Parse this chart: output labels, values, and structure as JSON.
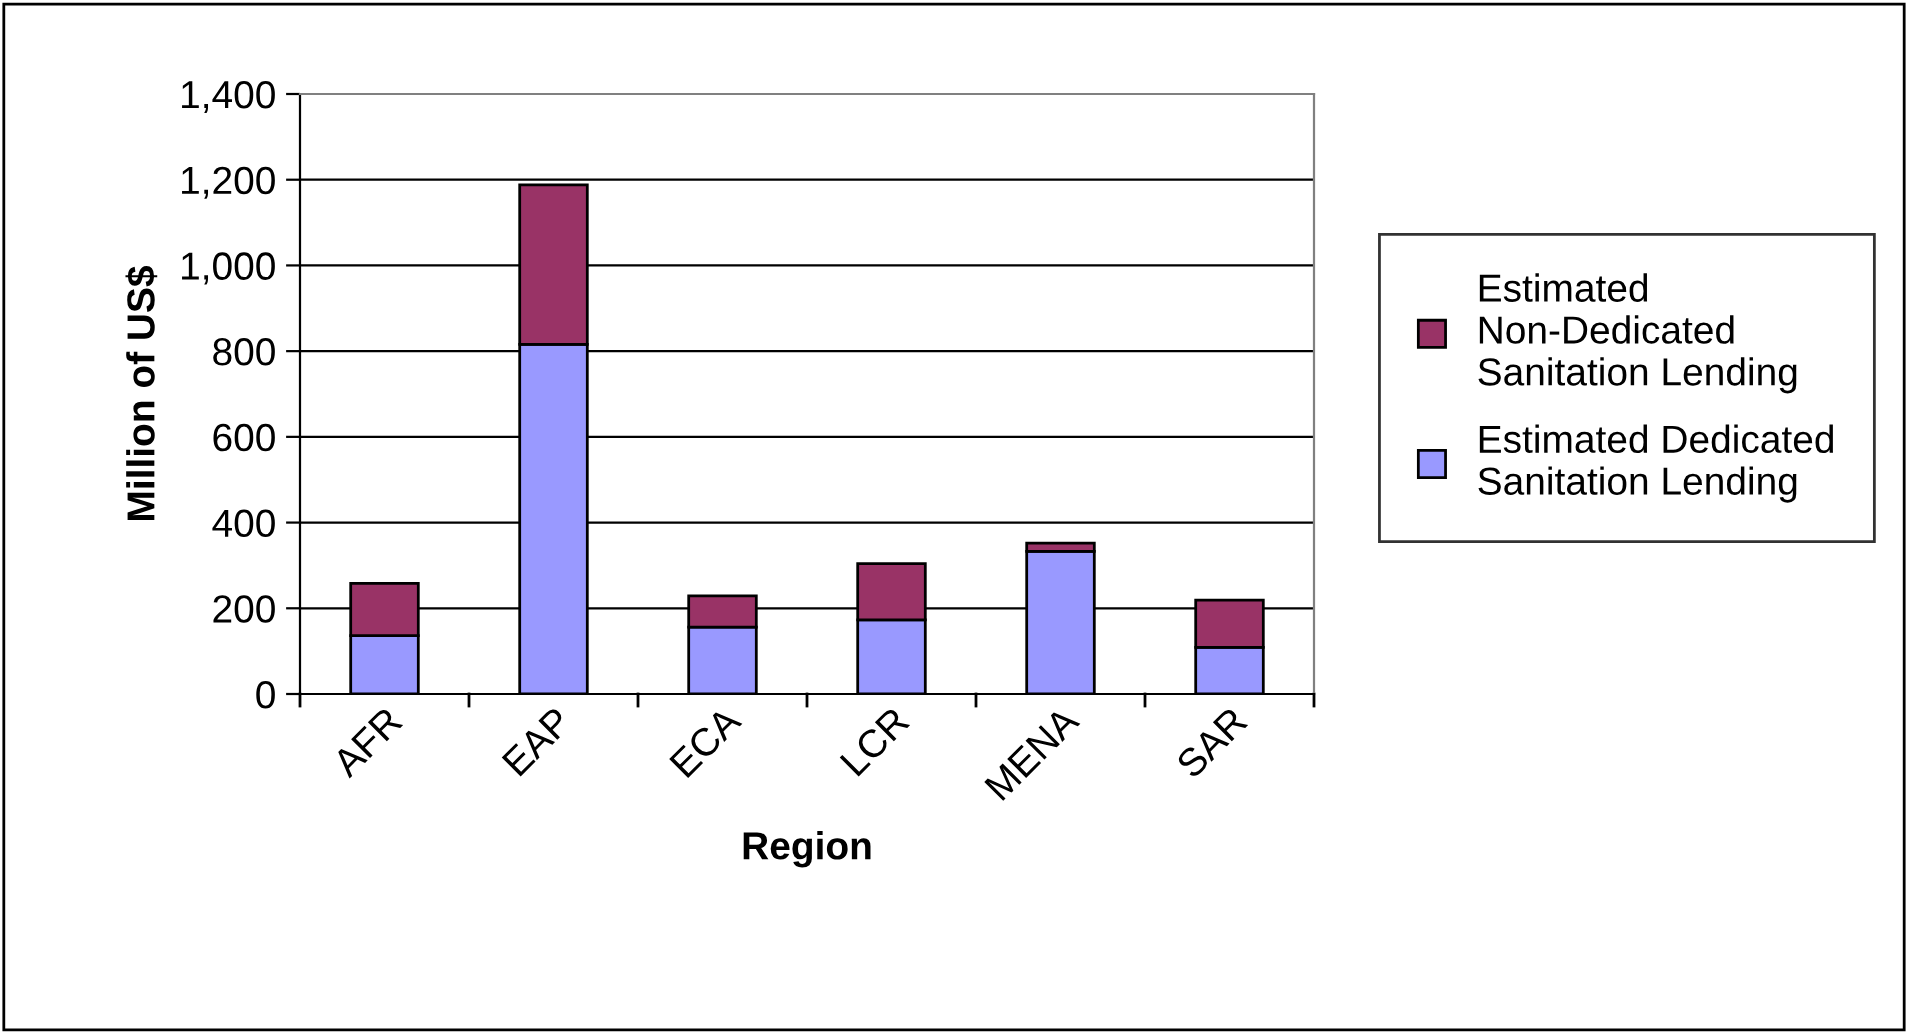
{
  "chart_data": {
    "type": "bar",
    "xlabel": "Region",
    "ylabel": "Million of US$",
    "categories": [
      "AFR",
      "EAP",
      "ECA",
      "LCR",
      "MENA",
      "SAR"
    ],
    "stacked": true,
    "series": [
      {
        "name": "Estimated Dedicated Sanitation Lending",
        "color": "#9999ff",
        "values": [
          136,
          816,
          156,
          173,
          333,
          109
        ]
      },
      {
        "name": "Estimated Non-Dedicated Sanitation Lending",
        "color": "#993366",
        "values": [
          122,
          372,
          73,
          131,
          19,
          110
        ]
      }
    ],
    "ylim": [
      0,
      1400
    ],
    "yticks": [
      {
        "value": 0,
        "label": "0"
      },
      {
        "value": 200,
        "label": "200"
      },
      {
        "value": 400,
        "label": "400"
      },
      {
        "value": 600,
        "label": "600"
      },
      {
        "value": 800,
        "label": "800"
      },
      {
        "value": 1000,
        "label": "1,000"
      },
      {
        "value": 1200,
        "label": "1,200"
      },
      {
        "value": 1400,
        "label": "1,400"
      }
    ],
    "grid": "y",
    "legend": "right"
  }
}
